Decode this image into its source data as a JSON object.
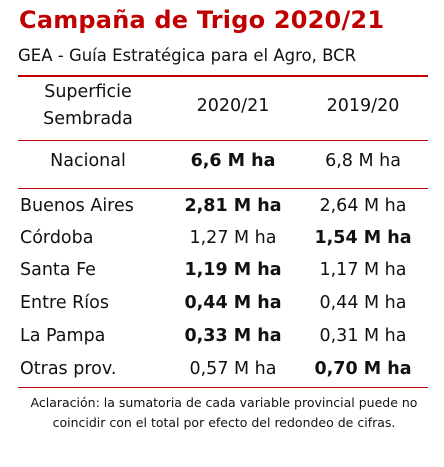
{
  "title": "Campaña de Trigo 2020/21",
  "subtitle": "GEA - Guía Estratégica para el Agro, BCR",
  "colors": {
    "title": "#c00000",
    "rule": "#c00000",
    "text": "#111111"
  },
  "header": {
    "label_line1": "Superficie",
    "label_line2": "Sembrada",
    "col1": "2020/21",
    "col2": "2019/20"
  },
  "national": {
    "name": "Nacional",
    "v1": "6,6 M ha",
    "v2": "6,8 M ha"
  },
  "provinces": [
    {
      "name": "Buenos Aires",
      "v1": "2,81 M ha",
      "v2": "2,64 M ha"
    },
    {
      "name": "Córdoba",
      "v1": "1,27 M ha",
      "v2": "1,54 M ha"
    },
    {
      "name": "Santa Fe",
      "v1": "1,19 M ha",
      "v2": "1,17 M ha"
    },
    {
      "name": "Entre Ríos",
      "v1": "0,44 M ha",
      "v2": "0,44 M ha"
    },
    {
      "name": "La Pampa",
      "v1": "0,33 M ha",
      "v2": "0,31 M ha"
    },
    {
      "name": "Otras prov.",
      "v1": "0,57 M ha",
      "v2": "0,70 M ha"
    }
  ],
  "note": "Aclaración: la sumatoria de cada variable provincial puede no coincidir con el total por efecto del redondeo de cifras."
}
